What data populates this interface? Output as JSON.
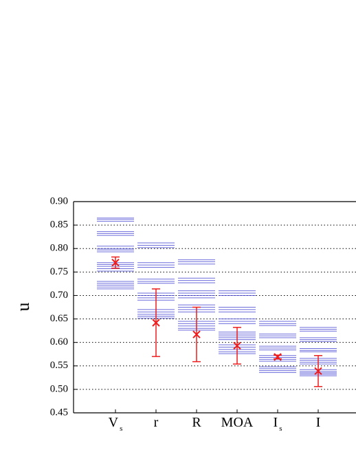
{
  "chart_data": {
    "type": "level-errorbar",
    "ylabel": "u",
    "categories": [
      "V",
      "r",
      "R",
      "MOA",
      "I",
      "I"
    ],
    "subscripts": [
      "s",
      null,
      null,
      null,
      "s",
      null
    ],
    "levels": [
      [
        0.865,
        0.862,
        0.858,
        0.836,
        0.832,
        0.828,
        0.805,
        0.8,
        0.797,
        0.793,
        0.77,
        0.766,
        0.762,
        0.757,
        0.752,
        0.73,
        0.726,
        0.722,
        0.718,
        0.714
      ],
      [
        0.812,
        0.807,
        0.802,
        0.77,
        0.765,
        0.76,
        0.735,
        0.73,
        0.726,
        0.705,
        0.7,
        0.695,
        0.69,
        0.67,
        0.665,
        0.66,
        0.656,
        0.652
      ],
      [
        0.776,
        0.772,
        0.767,
        0.737,
        0.732,
        0.727,
        0.71,
        0.705,
        0.7,
        0.695,
        0.68,
        0.675,
        0.67,
        0.665,
        0.645,
        0.64,
        0.635,
        0.63,
        0.626
      ],
      [
        0.71,
        0.705,
        0.7,
        0.675,
        0.67,
        0.665,
        0.65,
        0.645,
        0.64,
        0.622,
        0.618,
        0.614,
        0.61,
        0.606,
        0.595,
        0.59,
        0.585,
        0.58,
        0.576
      ],
      [
        0.645,
        0.64,
        0.636,
        0.618,
        0.614,
        0.61,
        0.592,
        0.588,
        0.584,
        0.572,
        0.568,
        0.564,
        0.56,
        0.548,
        0.544,
        0.54,
        0.536
      ],
      [
        0.632,
        0.628,
        0.624,
        0.61,
        0.606,
        0.602,
        0.587,
        0.583,
        0.58,
        0.566,
        0.562,
        0.558,
        0.554,
        0.542,
        0.538,
        0.535,
        0.532,
        0.529
      ]
    ],
    "level_color": "#3a3ad0",
    "means": [
      0.77,
      0.642,
      0.617,
      0.593,
      0.569,
      0.539
    ],
    "errors": [
      0.012,
      0.072,
      0.058,
      0.039,
      0.004,
      0.033
    ],
    "mean_color": "#ee1c1c",
    "ylim": [
      0.45,
      0.9
    ],
    "yticks": [
      0.45,
      {
        "value": 0.5,
        "label": "0.50"
      },
      0.55,
      {
        "value": 0.6,
        "label": "0.60"
      },
      0.65,
      {
        "value": 0.7,
        "label": "0.70"
      },
      0.75,
      {
        "value": 0.8,
        "label": "0.80"
      },
      0.85,
      {
        "value": 0.9,
        "label": "0.90"
      }
    ],
    "grid": true
  }
}
